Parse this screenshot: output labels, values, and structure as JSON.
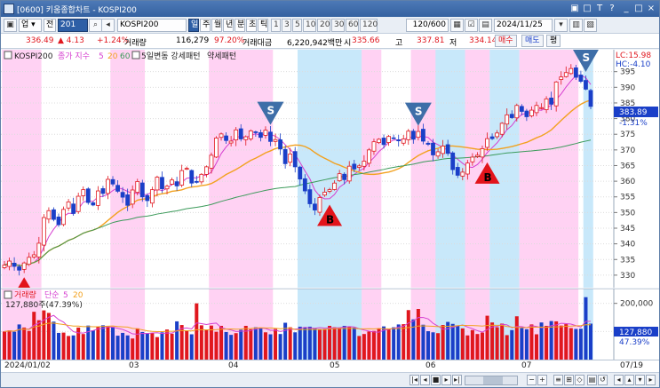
{
  "window": {
    "title": "[0600] 키움종합차트 - KOSPI200",
    "buttons": [
      "▣",
      "□",
      "T",
      "?",
      "_",
      "□",
      "×"
    ]
  },
  "toolbar": {
    "up_label": "업",
    "prev_label": "전",
    "code_value": "201",
    "name_value": "KOSPI200",
    "periods": [
      "일",
      "주",
      "월",
      "년",
      "분",
      "초",
      "틱"
    ],
    "active_period": "일",
    "numbers": [
      "1",
      "3",
      "5",
      "10",
      "20",
      "30",
      "60",
      "120"
    ],
    "count_value": "120/600",
    "date_value": "2024/11/25"
  },
  "quote": {
    "price": "336.49",
    "change": "▲ 4.13",
    "change_pct": "+1.24%",
    "volume_label": "거래량",
    "volume_value": "116,279",
    "volume_pct": "97.20%",
    "amount_label": "거래대금",
    "amount_value": "6,220,942백만",
    "open_label": "시",
    "open_value": "335.66",
    "high_label": "고",
    "high_value": "337.81",
    "low_label": "저",
    "low_value": "334.14",
    "buy_label": "매수",
    "sell_label": "매도",
    "avg_label": "평"
  },
  "price_legend": {
    "name": "KOSPI200",
    "ma_title": "종가 지수",
    "ma5": "5",
    "ma20": "20",
    "ma60": "60",
    "pattern": "5일변동 강세패턴",
    "weak": "약세패턴"
  },
  "price_right": {
    "lc": "LC:15.98",
    "hc": "HC:-4.10",
    "last": "383.89",
    "last_pct": "-1.31%"
  },
  "volume_legend": {
    "title": "거래량",
    "ma_title": "단순",
    "ma5": "5",
    "ma20": "20",
    "value": "127,880주(47.39%)"
  },
  "volume_right": {
    "last": "127,880",
    "last_pct": "47.39%"
  },
  "date_labels": [
    "2024/01/02",
    "03",
    "04",
    "05",
    "06",
    "07"
  ],
  "date_right": "07/19",
  "colors": {
    "up": "#e0171e",
    "down": "#1a3fc8",
    "ma5": "#d63fd0",
    "ma20": "#f2a11f",
    "ma60": "#3b9a5a",
    "strong_band": "#ffd2f3",
    "weak_band": "#c8e8fa"
  },
  "chart_data": {
    "type": "candlestick",
    "y_ticks": [
      330,
      335,
      340,
      345,
      350,
      355,
      360,
      365,
      370,
      375,
      380,
      385,
      390,
      395
    ],
    "ylim": [
      326,
      402
    ],
    "volume_ticks": [
      "100,000",
      "200,000"
    ],
    "volume_ylim": [
      0,
      240000
    ],
    "signals": [
      {
        "type": "B",
        "date": "2024/01/09",
        "label": "B"
      },
      {
        "type": "S",
        "date": "2024/04/01",
        "label": "S"
      },
      {
        "type": "B",
        "date": "2024/04/22",
        "label": "B"
      },
      {
        "type": "S",
        "date": "2024/05/22",
        "label": "S"
      },
      {
        "type": "B",
        "date": "2024/06/14",
        "label": "B"
      },
      {
        "type": "S",
        "date": "2024/07/18",
        "label": "S"
      }
    ],
    "band_ranges": {
      "strong": [
        [
          0,
          8
        ],
        [
          22,
          29
        ],
        [
          42,
          55
        ],
        [
          69,
          77
        ],
        [
          83,
          99
        ],
        [
          105,
          117
        ]
      ],
      "weak": [
        [
          60,
          73
        ],
        [
          88,
          94
        ],
        [
          99,
          105
        ],
        [
          118,
          120
        ]
      ]
    },
    "closes": [
      333.2,
      334.5,
      332.8,
      331.6,
      333.9,
      335.7,
      336.5,
      340.2,
      348.4,
      350.6,
      347.8,
      346.1,
      351.0,
      353.4,
      349.7,
      355.2,
      357.3,
      353.2,
      352.4,
      356.9,
      356.1,
      360.6,
      359.1,
      356.8,
      354.9,
      352.3,
      357.2,
      359.9,
      355.0,
      353.8,
      357.3,
      361.3,
      357.6,
      358.4,
      360.4,
      358.5,
      363.4,
      364.1,
      359.4,
      359.8,
      362.2,
      364.6,
      368.3,
      373.8,
      375.1,
      373.0,
      372.8,
      376.4,
      373.5,
      374.2,
      376.1,
      375.6,
      374.0,
      376.3,
      372.7,
      373.3,
      370.3,
      365.6,
      368.7,
      364.6,
      360.7,
      356.9,
      352.8,
      350.8,
      354.8,
      356.5,
      357.3,
      359.4,
      362.4,
      360.5,
      364.8,
      363.9,
      364.9,
      366.4,
      370.0,
      372.6,
      373.4,
      371.7,
      374.3,
      373.8,
      372.9,
      373.5,
      376.0,
      373.4,
      375.9,
      372.8,
      371.8,
      368.4,
      369.4,
      371.2,
      368.9,
      363.7,
      361.9,
      362.9,
      365.8,
      367.7,
      368.3,
      370.4,
      373.6,
      373.6,
      375.4,
      378.5,
      381.2,
      380.3,
      384.2,
      382.3,
      380.6,
      382.7,
      384.2,
      383.5,
      386.3,
      384.6,
      391.7,
      393.3,
      394.7,
      396.0,
      393.2,
      391.9,
      389.4,
      383.9
    ],
    "volumes": [
      100000,
      104000,
      99000,
      125000,
      114000,
      102000,
      170000,
      140000,
      175000,
      166000,
      135000,
      95000,
      96000,
      84000,
      86000,
      114000,
      91000,
      121000,
      104000,
      116000,
      122000,
      118000,
      116000,
      85000,
      95000,
      86000,
      75000,
      111000,
      98000,
      94000,
      95000,
      80000,
      97000,
      107000,
      92000,
      136000,
      123000,
      104000,
      90000,
      200000,
      122000,
      107000,
      121000,
      99000,
      120000,
      98000,
      88000,
      94000,
      106000,
      120000,
      108000,
      115000,
      112000,
      97000,
      90000,
      109000,
      91000,
      131000,
      115000,
      97000,
      117000,
      115000,
      117000,
      111000,
      108000,
      109000,
      120000,
      115000,
      114000,
      120000,
      117000,
      114000,
      84000,
      91000,
      100000,
      102000,
      110000,
      118000,
      109000,
      115000,
      125000,
      126000,
      176000,
      143000,
      180000,
      124000,
      101000,
      97000,
      94000,
      123000,
      134000,
      127000,
      121000,
      111000,
      86000,
      105000,
      91000,
      96000,
      156000,
      132000,
      115000,
      128000,
      87000,
      105000,
      154000,
      112000,
      108000,
      125000,
      90000,
      132000,
      120000,
      137000,
      136000,
      121000,
      126000,
      112000,
      109000,
      110000,
      222000,
      127880
    ]
  }
}
